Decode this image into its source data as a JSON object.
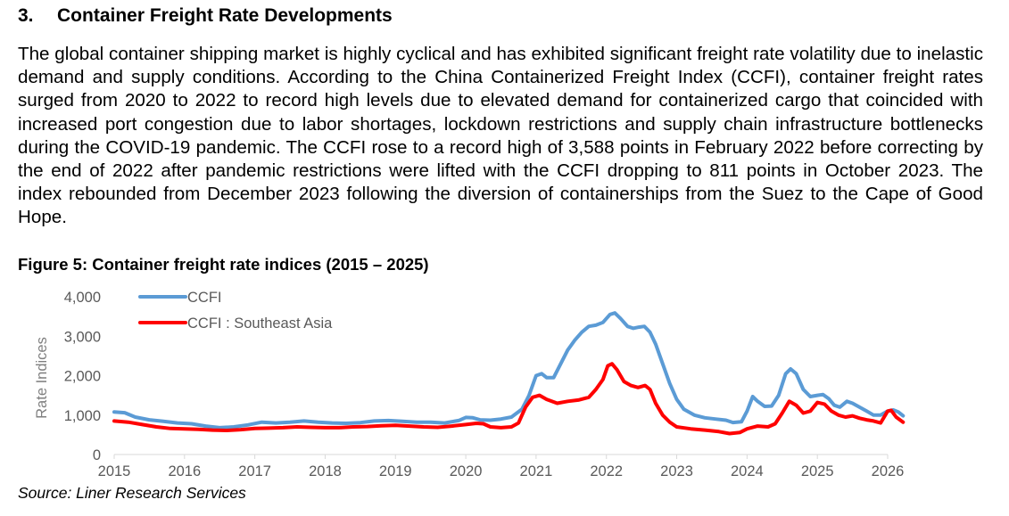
{
  "section": {
    "number": "3.",
    "title": "Container Freight Rate Developments"
  },
  "paragraph": "The global container shipping market is highly cyclical and has exhibited significant freight rate volatility due to inelastic demand and supply conditions. According to the China Containerized Freight Index (CCFI), container freight rates surged from 2020 to 2022 to record high levels due to elevated demand for containerized cargo that coincided with increased port congestion due to labor shortages, lockdown restrictions and supply chain infrastructure bottlenecks during the COVID-19 pandemic. The CCFI rose to a record high of 3,588 points in February 2022 before correcting by the end of 2022 after pandemic restrictions were lifted with the CCFI dropping to 811 points in October 2023. The index rebounded from December 2023 following the diversion of containerships from the Suez to the Cape of Good Hope.",
  "figure": {
    "title": "Figure 5: Container freight rate indices (2015 – 2025)",
    "source": "Source: Liner Research Services"
  },
  "chart_data": {
    "type": "line",
    "title": "Figure 5: Container freight rate indices (2015 – 2025)",
    "xlabel": "",
    "ylabel": "Rate Indices",
    "xlim": [
      2015,
      2026
    ],
    "ylim": [
      0,
      4000
    ],
    "grid": false,
    "legend_position": "top-left",
    "y_ticks": [
      0,
      1000,
      2000,
      3000,
      4000
    ],
    "y_tick_labels": [
      "0",
      "1,000",
      "2,000",
      "3,000",
      "4,000"
    ],
    "x_ticks": [
      2015,
      2016,
      2017,
      2018,
      2019,
      2020,
      2021,
      2022,
      2023,
      2024,
      2025,
      2026
    ],
    "x_tick_labels": [
      "2015",
      "2016",
      "2017",
      "2018",
      "2019",
      "2020",
      "2021",
      "2022",
      "2023",
      "2024",
      "2025",
      "2026"
    ],
    "series": [
      {
        "name": "CCFI",
        "color": "#5b9bd5",
        "points": [
          [
            2015.0,
            1080
          ],
          [
            2015.15,
            1060
          ],
          [
            2015.3,
            950
          ],
          [
            2015.5,
            880
          ],
          [
            2015.7,
            840
          ],
          [
            2015.9,
            800
          ],
          [
            2016.1,
            780
          ],
          [
            2016.3,
            720
          ],
          [
            2016.5,
            680
          ],
          [
            2016.7,
            700
          ],
          [
            2016.9,
            750
          ],
          [
            2017.1,
            820
          ],
          [
            2017.3,
            800
          ],
          [
            2017.5,
            820
          ],
          [
            2017.7,
            850
          ],
          [
            2017.9,
            820
          ],
          [
            2018.1,
            800
          ],
          [
            2018.3,
            790
          ],
          [
            2018.5,
            810
          ],
          [
            2018.7,
            850
          ],
          [
            2018.9,
            860
          ],
          [
            2019.1,
            840
          ],
          [
            2019.3,
            820
          ],
          [
            2019.5,
            820
          ],
          [
            2019.7,
            800
          ],
          [
            2019.9,
            860
          ],
          [
            2020.0,
            940
          ],
          [
            2020.1,
            930
          ],
          [
            2020.2,
            880
          ],
          [
            2020.35,
            870
          ],
          [
            2020.5,
            900
          ],
          [
            2020.65,
            950
          ],
          [
            2020.8,
            1150
          ],
          [
            2020.9,
            1500
          ],
          [
            2021.0,
            2000
          ],
          [
            2021.08,
            2050
          ],
          [
            2021.15,
            1950
          ],
          [
            2021.25,
            1950
          ],
          [
            2021.35,
            2300
          ],
          [
            2021.45,
            2650
          ],
          [
            2021.55,
            2900
          ],
          [
            2021.65,
            3100
          ],
          [
            2021.75,
            3250
          ],
          [
            2021.85,
            3280
          ],
          [
            2021.95,
            3350
          ],
          [
            2022.05,
            3550
          ],
          [
            2022.12,
            3588
          ],
          [
            2022.2,
            3450
          ],
          [
            2022.3,
            3250
          ],
          [
            2022.38,
            3200
          ],
          [
            2022.46,
            3230
          ],
          [
            2022.54,
            3250
          ],
          [
            2022.62,
            3100
          ],
          [
            2022.7,
            2800
          ],
          [
            2022.8,
            2300
          ],
          [
            2022.9,
            1800
          ],
          [
            2023.0,
            1400
          ],
          [
            2023.1,
            1150
          ],
          [
            2023.25,
            1000
          ],
          [
            2023.4,
            930
          ],
          [
            2023.55,
            900
          ],
          [
            2023.7,
            870
          ],
          [
            2023.8,
            811
          ],
          [
            2023.92,
            830
          ],
          [
            2024.0,
            1100
          ],
          [
            2024.08,
            1470
          ],
          [
            2024.15,
            1350
          ],
          [
            2024.25,
            1220
          ],
          [
            2024.35,
            1230
          ],
          [
            2024.45,
            1500
          ],
          [
            2024.55,
            2050
          ],
          [
            2024.62,
            2170
          ],
          [
            2024.7,
            2050
          ],
          [
            2024.8,
            1650
          ],
          [
            2024.9,
            1470
          ],
          [
            2025.0,
            1500
          ],
          [
            2025.08,
            1520
          ],
          [
            2025.16,
            1420
          ],
          [
            2025.24,
            1250
          ],
          [
            2025.32,
            1200
          ],
          [
            2025.42,
            1350
          ],
          [
            2025.5,
            1300
          ],
          [
            2025.6,
            1200
          ],
          [
            2025.7,
            1100
          ],
          [
            2025.8,
            1000
          ],
          [
            2025.9,
            1000
          ],
          [
            2026.0,
            1100
          ],
          [
            2026.08,
            1130
          ],
          [
            2026.15,
            1080
          ],
          [
            2026.22,
            980
          ]
        ]
      },
      {
        "name": "CCFI : Southeast Asia",
        "color": "#ff0000",
        "points": [
          [
            2015.0,
            850
          ],
          [
            2015.2,
            820
          ],
          [
            2015.4,
            760
          ],
          [
            2015.6,
            700
          ],
          [
            2015.8,
            660
          ],
          [
            2016.0,
            650
          ],
          [
            2016.2,
            640
          ],
          [
            2016.4,
            620
          ],
          [
            2016.6,
            610
          ],
          [
            2016.8,
            630
          ],
          [
            2017.0,
            660
          ],
          [
            2017.2,
            670
          ],
          [
            2017.4,
            680
          ],
          [
            2017.6,
            700
          ],
          [
            2017.8,
            690
          ],
          [
            2018.0,
            680
          ],
          [
            2018.2,
            680
          ],
          [
            2018.4,
            700
          ],
          [
            2018.6,
            710
          ],
          [
            2018.8,
            730
          ],
          [
            2019.0,
            740
          ],
          [
            2019.2,
            720
          ],
          [
            2019.4,
            700
          ],
          [
            2019.6,
            690
          ],
          [
            2019.8,
            720
          ],
          [
            2020.0,
            760
          ],
          [
            2020.15,
            790
          ],
          [
            2020.25,
            780
          ],
          [
            2020.35,
            700
          ],
          [
            2020.5,
            680
          ],
          [
            2020.65,
            700
          ],
          [
            2020.75,
            800
          ],
          [
            2020.85,
            1200
          ],
          [
            2020.95,
            1450
          ],
          [
            2021.05,
            1500
          ],
          [
            2021.15,
            1400
          ],
          [
            2021.3,
            1300
          ],
          [
            2021.45,
            1350
          ],
          [
            2021.6,
            1380
          ],
          [
            2021.75,
            1450
          ],
          [
            2021.85,
            1650
          ],
          [
            2021.95,
            1900
          ],
          [
            2022.02,
            2250
          ],
          [
            2022.08,
            2300
          ],
          [
            2022.15,
            2150
          ],
          [
            2022.25,
            1850
          ],
          [
            2022.35,
            1750
          ],
          [
            2022.45,
            1700
          ],
          [
            2022.55,
            1750
          ],
          [
            2022.62,
            1650
          ],
          [
            2022.7,
            1300
          ],
          [
            2022.8,
            1000
          ],
          [
            2022.9,
            820
          ],
          [
            2023.0,
            700
          ],
          [
            2023.2,
            650
          ],
          [
            2023.4,
            620
          ],
          [
            2023.6,
            580
          ],
          [
            2023.75,
            530
          ],
          [
            2023.9,
            560
          ],
          [
            2024.0,
            650
          ],
          [
            2024.15,
            720
          ],
          [
            2024.3,
            700
          ],
          [
            2024.4,
            780
          ],
          [
            2024.5,
            1050
          ],
          [
            2024.6,
            1350
          ],
          [
            2024.7,
            1250
          ],
          [
            2024.8,
            1050
          ],
          [
            2024.9,
            1100
          ],
          [
            2025.0,
            1320
          ],
          [
            2025.1,
            1280
          ],
          [
            2025.2,
            1100
          ],
          [
            2025.3,
            1000
          ],
          [
            2025.4,
            950
          ],
          [
            2025.5,
            980
          ],
          [
            2025.6,
            920
          ],
          [
            2025.7,
            880
          ],
          [
            2025.8,
            850
          ],
          [
            2025.9,
            800
          ],
          [
            2026.0,
            1100
          ],
          [
            2026.05,
            1120
          ],
          [
            2026.12,
            950
          ],
          [
            2026.22,
            820
          ]
        ]
      }
    ]
  }
}
